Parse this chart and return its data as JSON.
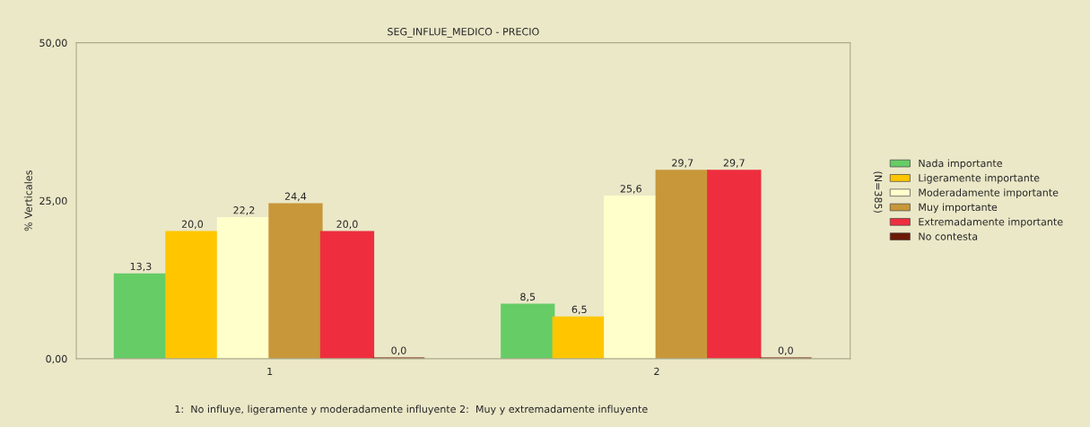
{
  "chart_data": {
    "type": "bar",
    "title": "SEG_INFLUE_MEDICO - PRECIO",
    "ylabel": "% Verticales",
    "categories": [
      "1",
      "2"
    ],
    "series": [
      {
        "name": "Nada importante",
        "color": "#66cc66",
        "values": [
          13.3,
          8.5
        ],
        "value_labels": [
          "13,3",
          "8,5"
        ]
      },
      {
        "name": "Ligeramente importante",
        "color": "#ffc600",
        "values": [
          20.0,
          6.5
        ],
        "value_labels": [
          "20,0",
          "6,5"
        ]
      },
      {
        "name": "Moderadamente importante",
        "color": "#ffffcc",
        "values": [
          22.2,
          25.6
        ],
        "value_labels": [
          "22,2",
          "25,6"
        ]
      },
      {
        "name": "Muy importante",
        "color": "#c8973a",
        "values": [
          24.4,
          29.7
        ],
        "value_labels": [
          "24,4",
          "29,7"
        ]
      },
      {
        "name": "Extremadamente importante",
        "color": "#ee2e3f",
        "values": [
          20.0,
          29.7
        ],
        "value_labels": [
          "20,0",
          "29,7"
        ]
      },
      {
        "name": "No contesta",
        "color": "#6b1a05",
        "values": [
          0.0,
          0.0
        ],
        "value_labels": [
          "0,0",
          "0,0"
        ]
      }
    ],
    "ylim": [
      0,
      50
    ],
    "yticks": [
      {
        "value": 0,
        "label": "0,00"
      },
      {
        "value": 25,
        "label": "25,00"
      },
      {
        "value": 50,
        "label": "50,00"
      }
    ],
    "legend": "right",
    "annotations": [
      "(N=385)",
      "1:  No influye, ligeramente y moderadamente influyente 2:  Muy y extremadamente influyente"
    ]
  }
}
